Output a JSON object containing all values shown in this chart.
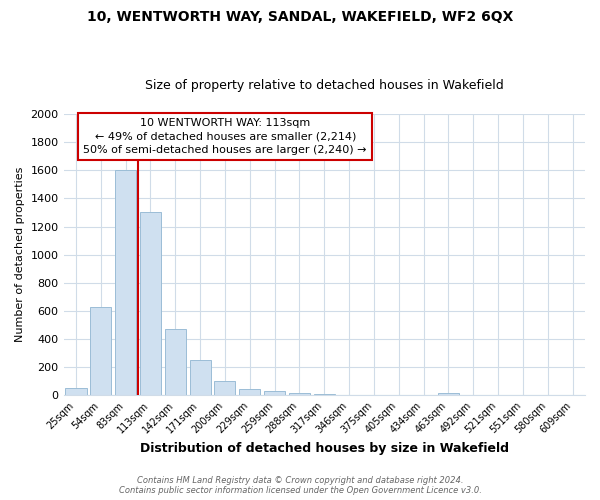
{
  "title": "10, WENTWORTH WAY, SANDAL, WAKEFIELD, WF2 6QX",
  "subtitle": "Size of property relative to detached houses in Wakefield",
  "xlabel": "Distribution of detached houses by size in Wakefield",
  "ylabel": "Number of detached properties",
  "bar_color": "#cfe0f0",
  "bar_edge_color": "#9bbdd6",
  "vline_color": "#cc0000",
  "annotation_line1": "10 WENTWORTH WAY: 113sqm",
  "annotation_line2": "← 49% of detached houses are smaller (2,214)",
  "annotation_line3": "50% of semi-detached houses are larger (2,240) →",
  "annotation_box_color": "white",
  "annotation_box_edge": "#cc0000",
  "bins": [
    "25sqm",
    "54sqm",
    "83sqm",
    "113sqm",
    "142sqm",
    "171sqm",
    "200sqm",
    "229sqm",
    "259sqm",
    "288sqm",
    "317sqm",
    "346sqm",
    "375sqm",
    "405sqm",
    "434sqm",
    "463sqm",
    "492sqm",
    "521sqm",
    "551sqm",
    "580sqm",
    "609sqm"
  ],
  "values": [
    55,
    625,
    1600,
    1300,
    470,
    250,
    100,
    48,
    28,
    18,
    12,
    0,
    0,
    0,
    0,
    15,
    0,
    0,
    0,
    0,
    0
  ],
  "ylim": [
    0,
    2000
  ],
  "yticks": [
    0,
    200,
    400,
    600,
    800,
    1000,
    1200,
    1400,
    1600,
    1800,
    2000
  ],
  "footnote_line1": "Contains HM Land Registry data © Crown copyright and database right 2024.",
  "footnote_line2": "Contains public sector information licensed under the Open Government Licence v3.0.",
  "background_color": "#ffffff",
  "grid_color": "#d0dce8"
}
